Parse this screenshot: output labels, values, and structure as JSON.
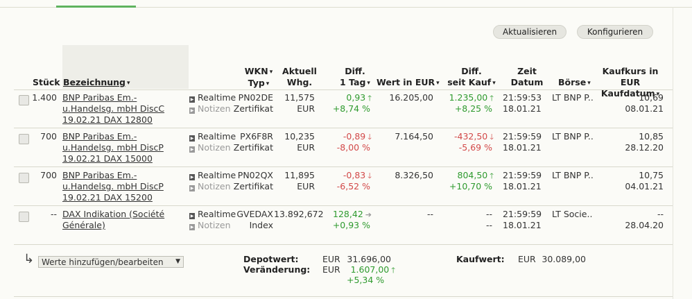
{
  "buttons": {
    "refresh": "Aktualisieren",
    "configure": "Konfigurieren"
  },
  "headers": {
    "stueck": "Stück",
    "bezeichnung": "Bezeichnung",
    "wkn": "WKN",
    "typ": "Typ",
    "aktuell": "Aktuell",
    "whg": "Whg.",
    "diff": "Diff.",
    "tag": "1 Tag",
    "wert": "Wert in EUR",
    "diff2": "Diff.",
    "seitkauf": "seit Kauf",
    "zeit": "Zeit",
    "datum": "Datum",
    "boerse": "Börse",
    "kaufkurs": "Kaufkurs in EUR",
    "kaufdatum": "Kaufdatum"
  },
  "rows": [
    {
      "stueck": "1.400",
      "name": "BNP Paribas Em.-u.Handelsg. mbH DiscC 19.02.21 DAX 12800",
      "realtime": "Realtime",
      "notizen": "Notizen",
      "wkn": "PN02DE",
      "typ": "Zertifikat",
      "kurs": "11,575",
      "whg": "EUR",
      "diff_abs": "0,93",
      "diff_pct": "+8,74 %",
      "wert": "16.205,00",
      "kauf_abs": "1.235,00",
      "kauf_pct": "+8,25 %",
      "zeit": "21:59:53",
      "datum": "18.01.21",
      "boerse": "LT BNP P..",
      "kaufkurs": "10,69",
      "kaufdatum": "08.01.21"
    },
    {
      "stueck": "700",
      "name": "BNP Paribas Em.-u.Handelsg. mbH DiscP 19.02.21 DAX 15000",
      "realtime": "Realtime",
      "notizen": "Notizen",
      "wkn": "PX6F8R",
      "typ": "Zertifikat",
      "kurs": "10,235",
      "whg": "EUR",
      "diff_abs": "-0,89",
      "diff_pct": "-8,00 %",
      "wert": "7.164,50",
      "kauf_abs": "-432,50",
      "kauf_pct": "-5,69 %",
      "zeit": "21:59:59",
      "datum": "18.01.21",
      "boerse": "LT BNP P..",
      "kaufkurs": "10,85",
      "kaufdatum": "28.12.20"
    },
    {
      "stueck": "700",
      "name": "BNP Paribas Em.-u.Handelsg. mbH DiscP 19.02.21 DAX 15200",
      "realtime": "Realtime",
      "notizen": "Notizen",
      "wkn": "PN02QX",
      "typ": "Zertifikat",
      "kurs": "11,895",
      "whg": "EUR",
      "diff_abs": "-0,83",
      "diff_pct": "-6,52 %",
      "wert": "8.326,50",
      "kauf_abs": "804,50",
      "kauf_pct": "+10,70 %",
      "zeit": "21:59:59",
      "datum": "18.01.21",
      "boerse": "LT BNP P..",
      "kaufkurs": "10,75",
      "kaufdatum": "04.01.21"
    },
    {
      "stueck": "--",
      "name": "DAX Indikation (Société Générale)",
      "realtime": "Realtime",
      "notizen": "Notizen",
      "wkn": "GVEDAX",
      "typ": "Index",
      "kurs": "13.892,672",
      "whg": "",
      "diff_abs": "128,42",
      "diff_pct": "+0,93 %",
      "wert": "--",
      "kauf_abs": "--",
      "kauf_pct": "--",
      "zeit": "21:59:59",
      "datum": "18.01.21",
      "boerse": "LT Socie..",
      "kaufkurs": "--",
      "kaufdatum": "28.04.20"
    }
  ],
  "footer": {
    "select": "Werte hinzufügen/bearbeiten",
    "depotwert_label": "Depotwert:",
    "depotwert_cur": "EUR",
    "depotwert": "31.696,00",
    "veraenderung_label": "Veränderung:",
    "veraenderung_cur": "EUR",
    "veraenderung": "1.607,00",
    "veraenderung_pct": "+5,34 %",
    "kaufwert_label": "Kaufwert:",
    "kaufwert_cur": "EUR",
    "kaufwert": "30.089,00"
  },
  "colors": {
    "positive": "#2e9a2e",
    "negative": "#d24848",
    "accent": "#5fb35f"
  },
  "icons": {
    "up": "arrow-up-icon",
    "down": "arrow-down-icon",
    "right": "arrow-right-icon"
  }
}
